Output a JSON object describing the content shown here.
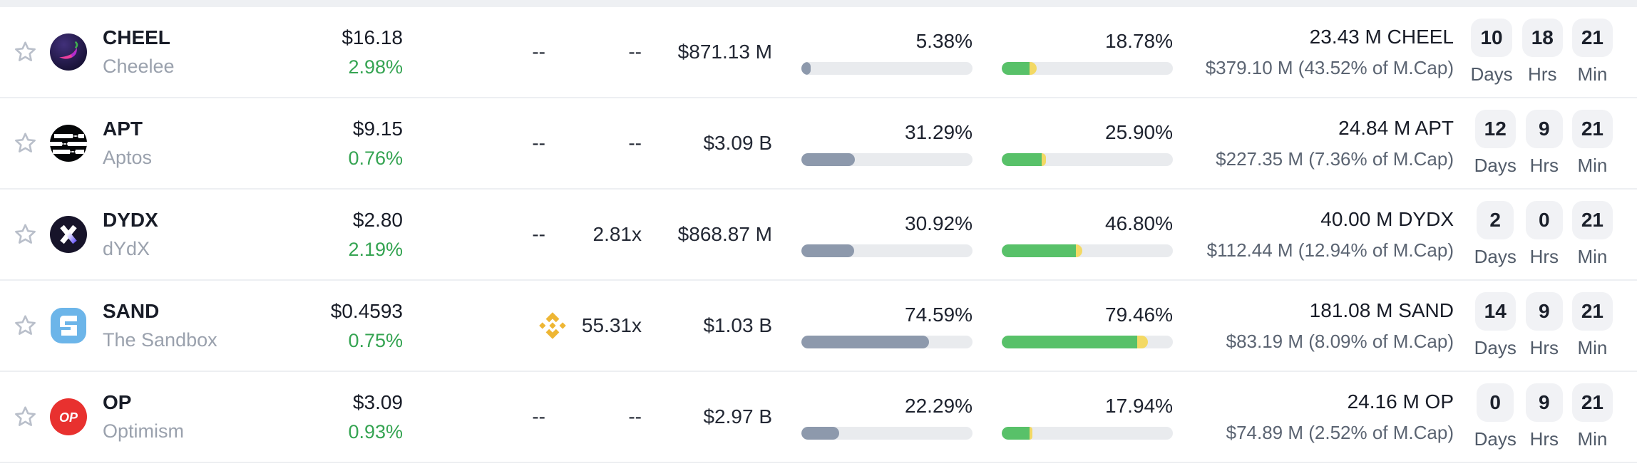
{
  "labels": {
    "days": "Days",
    "hrs": "Hrs",
    "min": "Min"
  },
  "colors": {
    "positive_change": "#35a452",
    "bar_track": "#e9ebee",
    "bar_gray_fill": "#8d99ac",
    "bar_green_fill": "#58c169",
    "bar_yellow_fill": "#f3d964",
    "countdown_box_bg": "#f1f2f5",
    "binance_gold": "#eeb634"
  },
  "table": {
    "rows": [
      {
        "symbol": "CHEEL",
        "name": "Cheelee",
        "price": "$16.18",
        "change_pct": "2.98%",
        "col_dash": "--",
        "multiplier": "--",
        "has_exchange_icon": false,
        "market_cap": "$871.13 M",
        "bar1_label": "5.38%",
        "bar1_pct": 5.38,
        "bar2_label": "18.78%",
        "bar2_green_pct": 16.2,
        "bar2_yellow_pct": 4.2,
        "unlock_amount": "23.43 M CHEEL",
        "unlock_detail": "$379.10 M (43.52% of M.Cap)",
        "countdown": {
          "days": "10",
          "hrs": "18",
          "min": "21"
        },
        "icon": "cheelee"
      },
      {
        "symbol": "APT",
        "name": "Aptos",
        "price": "$9.15",
        "change_pct": "0.76%",
        "col_dash": "--",
        "multiplier": "--",
        "has_exchange_icon": false,
        "market_cap": "$3.09 B",
        "bar1_label": "31.29%",
        "bar1_pct": 31.29,
        "bar2_label": "25.90%",
        "bar2_green_pct": 23.4,
        "bar2_yellow_pct": 2.5,
        "unlock_amount": "24.84 M APT",
        "unlock_detail": "$227.35 M (7.36% of M.Cap)",
        "countdown": {
          "days": "12",
          "hrs": "9",
          "min": "21"
        },
        "icon": "aptos"
      },
      {
        "symbol": "DYDX",
        "name": "dYdX",
        "price": "$2.80",
        "change_pct": "2.19%",
        "col_dash": "--",
        "multiplier": "2.81x",
        "has_exchange_icon": false,
        "market_cap": "$868.87 M",
        "bar1_label": "30.92%",
        "bar1_pct": 30.92,
        "bar2_label": "46.80%",
        "bar2_green_pct": 43.5,
        "bar2_yellow_pct": 3.5,
        "unlock_amount": "40.00 M DYDX",
        "unlock_detail": "$112.44 M (12.94% of M.Cap)",
        "countdown": {
          "days": "2",
          "hrs": "0",
          "min": "21"
        },
        "icon": "dydx"
      },
      {
        "symbol": "SAND",
        "name": "The Sandbox",
        "price": "$0.4593",
        "change_pct": "0.75%",
        "col_dash": "",
        "multiplier": "55.31x",
        "has_exchange_icon": true,
        "market_cap": "$1.03 B",
        "bar1_label": "74.59%",
        "bar1_pct": 74.59,
        "bar2_label": "79.46%",
        "bar2_green_pct": 79.0,
        "bar2_yellow_pct": 6.5,
        "unlock_amount": "181.08 M SAND",
        "unlock_detail": "$83.19 M (8.09% of M.Cap)",
        "countdown": {
          "days": "14",
          "hrs": "9",
          "min": "21"
        },
        "icon": "sandbox"
      },
      {
        "symbol": "OP",
        "name": "Optimism",
        "price": "$3.09",
        "change_pct": "0.93%",
        "col_dash": "--",
        "multiplier": "--",
        "has_exchange_icon": false,
        "market_cap": "$2.97 B",
        "bar1_label": "22.29%",
        "bar1_pct": 22.29,
        "bar2_label": "17.94%",
        "bar2_green_pct": 16.3,
        "bar2_yellow_pct": 1.8,
        "unlock_amount": "24.16 M OP",
        "unlock_detail": "$74.89 M (2.52% of M.Cap)",
        "countdown": {
          "days": "0",
          "hrs": "9",
          "min": "21"
        },
        "icon": "optimism"
      }
    ]
  }
}
